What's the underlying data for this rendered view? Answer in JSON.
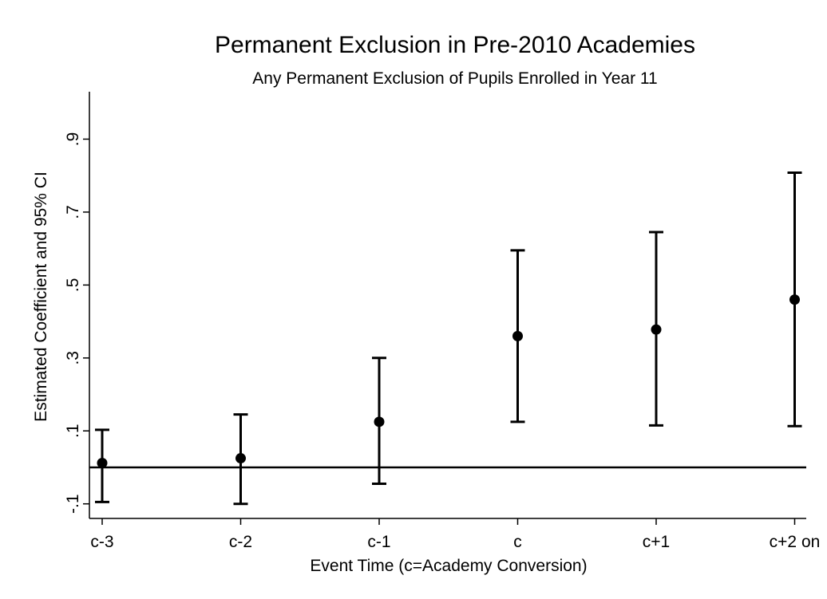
{
  "chart_data": {
    "type": "scatter",
    "title": "Permanent Exclusion in Pre-2010 Academies",
    "subtitle": "Any Permanent Exclusion of Pupils Enrolled in Year 11",
    "xlabel": "Event Time (c=Academy Conversion)",
    "ylabel": "Estimated Coefficient and 95% CI",
    "categories": [
      "c-3",
      "c-2",
      "c-1",
      "c",
      "c+1",
      "c+2 on"
    ],
    "values": [
      0.012,
      0.025,
      0.125,
      0.36,
      0.378,
      0.46
    ],
    "ci_lower": [
      -0.095,
      -0.1,
      -0.045,
      0.125,
      0.115,
      0.113
    ],
    "ci_upper": [
      0.103,
      0.145,
      0.3,
      0.595,
      0.645,
      0.808
    ],
    "yticks": [
      -0.1,
      0.1,
      0.3,
      0.5,
      0.7,
      0.9
    ],
    "ytick_labels": [
      "-.1",
      ".1",
      ".3",
      ".5",
      ".7",
      ".9"
    ],
    "ylim": [
      -0.14,
      1.03
    ],
    "reference_line": 0,
    "grid": false,
    "legend": "none"
  }
}
